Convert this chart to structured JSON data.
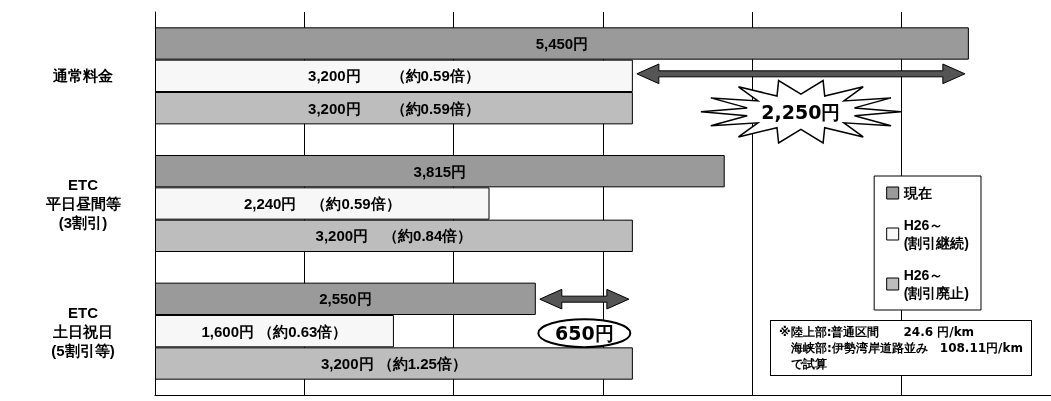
{
  "chart_data": {
    "type": "bar",
    "orientation": "horizontal",
    "categories": [
      "通常料金",
      "ETC\n平日昼間等\n(3割引)",
      "ETC\n土日祝日\n(5割引等)"
    ],
    "series": [
      {
        "name": "現在",
        "color": "#9a9a9a",
        "values": [
          5450,
          3815,
          2550
        ],
        "value_labels": [
          "5,450円",
          "3,815円",
          "2,550円"
        ]
      },
      {
        "name": "H26～\n(割引継続)",
        "color": "#f7f7f7",
        "values": [
          3200,
          2240,
          1600
        ],
        "value_labels": [
          "3,200円　　（約0.59倍）",
          "2,240円　（約0.59倍）",
          "1,600円 （約0.63倍）"
        ]
      },
      {
        "name": "H26～\n(割引廃止)",
        "color": "#bdbdbd",
        "values": [
          3200,
          3200,
          3200
        ],
        "value_labels": [
          "3,200円　　（約0.59倍）",
          "3,200円　（約0.84倍）",
          "3,200円 （約1.25倍）"
        ]
      }
    ],
    "xlim": [
      0,
      6000
    ],
    "xticks": [
      {
        "value": 0,
        "label": null
      },
      {
        "value": 1000,
        "label": null
      },
      {
        "value": 2000,
        "label": null
      },
      {
        "value": 3000,
        "label": null
      },
      {
        "value": 4000,
        "label": null
      },
      {
        "value": 5000,
        "label": null
      }
    ],
    "tick_labels": "y",
    "grid": "x",
    "legend": "right",
    "annotations": [
      "2,250円",
      "650円",
      "※陸上部:普通区間　　24.6 円/km\n　海峡部:伊勢湾岸道路並み　108.11円/km\n　で試算"
    ]
  }
}
